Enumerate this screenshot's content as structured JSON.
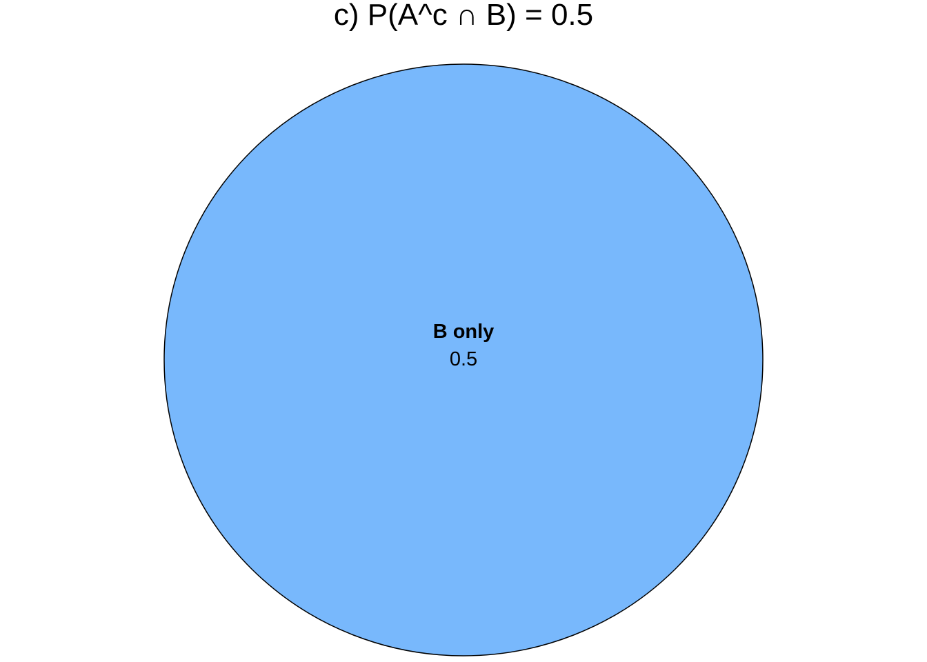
{
  "diagram": {
    "title": "c) P(A^c ∩ B) = 0.5",
    "regions": [
      {
        "label": "B only",
        "value": "0.5",
        "fill": "#78B8FC",
        "stroke": "#000000"
      }
    ]
  }
}
